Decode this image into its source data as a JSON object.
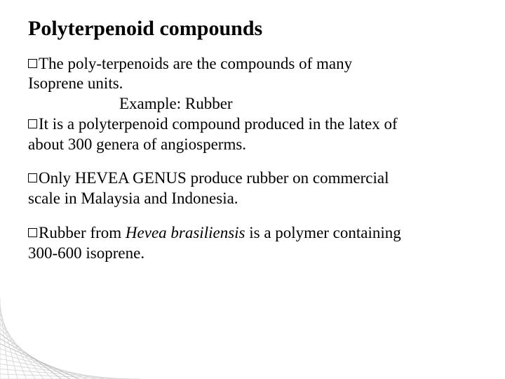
{
  "title": "Polyterpenoid compounds",
  "body": {
    "p1_line1": "The poly-terpenoids are the compounds of many",
    "p1_line2": "Isoprene units.",
    "p1_example": "Example: Rubber",
    "p2_line1": "It is a polyterpenoid compound produced in the latex of",
    "p2_line2": "about 300 genera of angiosperms.",
    "p3_line1": "Only HEVEA GENUS produce rubber on commercial",
    "p3_line2": "scale in Malaysia and Indonesia.",
    "p4_prefix": "Rubber from ",
    "p4_species": "Hevea brasiliensis",
    "p4_suffix1": " is a polymer containing",
    "p4_line2": "300-600 isoprene."
  },
  "decoration": {
    "line_count": 17,
    "line_color": "#d9d9d9",
    "line_highlight": "#bfbfbf",
    "line_width": 1
  }
}
